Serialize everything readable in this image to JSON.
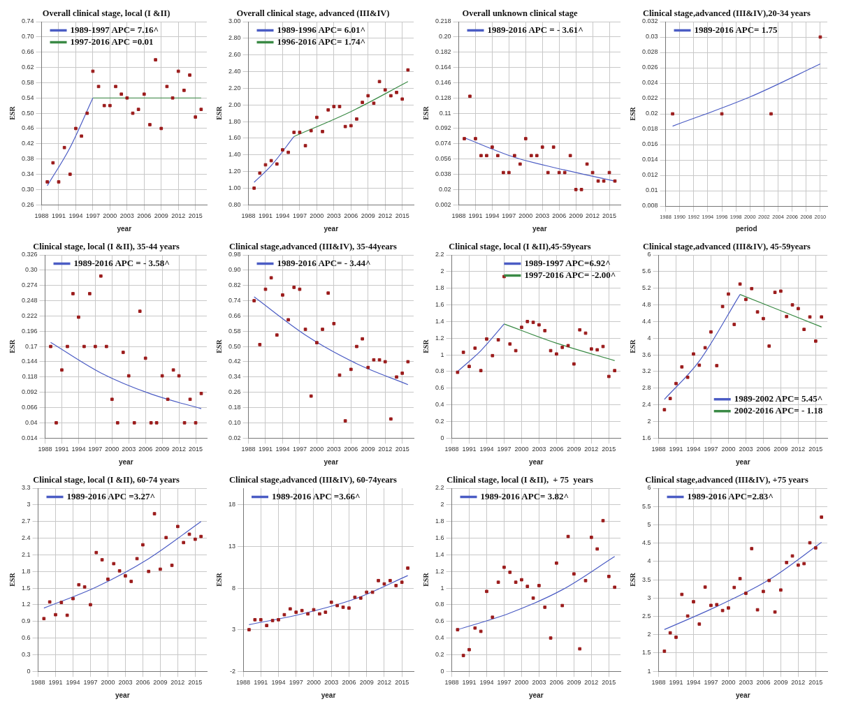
{
  "chart_data": [
    {
      "type": "scatter",
      "title": "Overall clinical stage, local (I &II)",
      "xlabel": "year",
      "ylabel": "ESR",
      "xlim": [
        1988,
        2017
      ],
      "xticks": [
        1988,
        1991,
        1994,
        1997,
        2000,
        2003,
        2006,
        2009,
        2012,
        2015
      ],
      "ylim": [
        0.26,
        0.74
      ],
      "yticks": [
        0.26,
        {
          "value": 0.3,
          "label": "0.30"
        },
        0.34,
        0.38,
        0.42,
        0.46,
        {
          "value": 0.5,
          "label": "0.50"
        },
        0.54,
        0.58,
        0.62,
        0.66,
        {
          "value": 0.7,
          "label": "0.70"
        },
        0.74
      ],
      "grid": true,
      "legend": "top left",
      "x": [
        1989,
        1990,
        1991,
        1992,
        1993,
        1994,
        1995,
        1996,
        1997,
        1998,
        1999,
        2000,
        2001,
        2002,
        2003,
        2004,
        2005,
        2006,
        2007,
        2008,
        2009,
        2010,
        2011,
        2012,
        2013,
        2014,
        2015,
        2016
      ],
      "series": [
        {
          "type": "scatter",
          "color": "#9b1c1c",
          "marker": "square",
          "values": [
            0.32,
            0.37,
            0.32,
            0.41,
            0.34,
            0.46,
            0.44,
            0.5,
            0.61,
            0.57,
            0.52,
            0.52,
            0.57,
            0.55,
            0.54,
            0.5,
            0.51,
            0.55,
            0.47,
            0.64,
            0.46,
            0.57,
            0.54,
            0.61,
            0.56,
            0.6,
            0.49,
            0.51
          ]
        },
        {
          "type": "line",
          "name": "1989-1997 APC= 7.16^",
          "color": "#4b5cc4",
          "x": [
            1989,
            1993,
            1997
          ],
          "values": [
            0.31,
            0.41,
            0.54
          ]
        },
        {
          "type": "line",
          "name": "1997-2016 APC =0.01",
          "color": "#3a8a45",
          "x": [
            1997,
            2016
          ],
          "values": [
            0.54,
            0.54
          ]
        }
      ]
    },
    {
      "type": "scatter",
      "title": "Overall clinical stage, advanced (III&IV)",
      "xlabel": "year",
      "ylabel": "ESR",
      "xlim": [
        1988,
        2017
      ],
      "xticks": [
        1988,
        1991,
        1994,
        1997,
        2000,
        2003,
        2006,
        2009,
        2012,
        2015
      ],
      "ylim": [
        0.8,
        3
      ],
      "yticks": [
        {
          "value": 0.8,
          "label": "0.80"
        },
        {
          "value": 1,
          "label": "1.00"
        },
        {
          "value": 1.2,
          "label": "1.20"
        },
        {
          "value": 1.4,
          "label": "1.40"
        },
        {
          "value": 1.6,
          "label": "1.60"
        },
        {
          "value": 1.8,
          "label": "1.80"
        },
        {
          "value": 2,
          "label": "2.00"
        },
        {
          "value": 2.2,
          "label": "2.20"
        },
        {
          "value": 2.4,
          "label": "2.40"
        },
        {
          "value": 2.6,
          "label": "2.60"
        },
        {
          "value": 2.8,
          "label": "2.80"
        },
        {
          "value": 3,
          "label": "3.00"
        }
      ],
      "grid": true,
      "legend": "top left",
      "x": [
        1989,
        1990,
        1991,
        1992,
        1993,
        1994,
        1995,
        1996,
        1997,
        1998,
        1999,
        2000,
        2001,
        2002,
        2003,
        2004,
        2005,
        2006,
        2007,
        2008,
        2009,
        2010,
        2011,
        2012,
        2013,
        2014,
        2015,
        2016
      ],
      "series": [
        {
          "type": "scatter",
          "color": "#9b1c1c",
          "marker": "square",
          "values": [
            1.0,
            1.18,
            1.28,
            1.33,
            1.29,
            1.46,
            1.43,
            1.67,
            1.67,
            1.51,
            1.69,
            1.85,
            1.68,
            1.94,
            1.98,
            1.98,
            1.74,
            1.75,
            1.83,
            2.03,
            2.11,
            2.02,
            2.28,
            2.18,
            2.11,
            2.15,
            2.07,
            2.42
          ]
        },
        {
          "type": "line",
          "name": "1989-1996 APC= 6.01^",
          "color": "#4b5cc4",
          "x": [
            1989,
            1992,
            1996
          ],
          "values": [
            1.07,
            1.27,
            1.62
          ]
        },
        {
          "type": "line",
          "name": "1996-2016 APC= 1.74^",
          "color": "#3a8a45",
          "x": [
            1996,
            2006,
            2016
          ],
          "values": [
            1.62,
            1.92,
            2.28
          ]
        }
      ]
    },
    {
      "type": "scatter",
      "title": "Overall unknown clinical stage",
      "xlabel": "year",
      "ylabel": "ESR",
      "xlim": [
        1988,
        2017
      ],
      "xticks": [
        1988,
        1991,
        1994,
        1997,
        2000,
        2003,
        2006,
        2009,
        2012,
        2015
      ],
      "ylim": [
        0.002,
        0.218
      ],
      "yticks": [
        0.002,
        0.02,
        0.038,
        0.056,
        0.074,
        0.092,
        0.11,
        0.128,
        0.146,
        0.164,
        0.182,
        {
          "value": 0.2,
          "label": "0.20"
        },
        0.218
      ],
      "grid": true,
      "legend": "top left",
      "x": [
        1989,
        1990,
        1991,
        1992,
        1993,
        1994,
        1995,
        1996,
        1997,
        1998,
        1999,
        2000,
        2001,
        2002,
        2003,
        2004,
        2005,
        2006,
        2007,
        2008,
        2009,
        2010,
        2011,
        2012,
        2013,
        2014,
        2015,
        2016
      ],
      "series": [
        {
          "type": "scatter",
          "color": "#9b1c1c",
          "marker": "square",
          "values": [
            0.08,
            0.13,
            0.08,
            0.06,
            0.06,
            0.07,
            0.06,
            0.04,
            0.04,
            0.06,
            0.05,
            0.08,
            0.06,
            0.06,
            0.07,
            0.04,
            0.07,
            0.04,
            0.04,
            0.06,
            0.02,
            0.02,
            0.05,
            0.04,
            0.03,
            0.03,
            0.04,
            0.03
          ]
        },
        {
          "type": "line",
          "name": "1989-2016 APC = - 3.61^",
          "color": "#4b5cc4",
          "x": [
            1989,
            1998,
            2007,
            2016
          ],
          "values": [
            0.081,
            0.058,
            0.043,
            0.03
          ]
        }
      ]
    },
    {
      "type": "scatter",
      "title": "Clinical stage,advanced (III&IV),20-34 years",
      "xlabel": "period",
      "ylabel": "ESR",
      "xlim": [
        1988,
        2011
      ],
      "xticks": [
        1988,
        1990,
        1992,
        1994,
        1996,
        1998,
        2000,
        2002,
        2004,
        2006,
        2008,
        2010
      ],
      "ylim": [
        0.008,
        0.032
      ],
      "yticks": [
        0.008,
        0.01,
        0.012,
        0.014,
        0.016,
        0.018,
        0.02,
        0.022,
        0.024,
        0.026,
        0.028,
        0.03,
        0.032
      ],
      "grid": true,
      "legend": "top left",
      "x": [
        1989,
        1996,
        2003,
        2010
      ],
      "series": [
        {
          "type": "scatter",
          "color": "#9b1c1c",
          "marker": "square",
          "values": [
            0.02,
            0.02,
            0.02,
            0.03
          ]
        },
        {
          "type": "line",
          "name": "1989-2016 APC= 1.75",
          "color": "#4b5cc4",
          "x": [
            1989,
            2000,
            2010
          ],
          "values": [
            0.0184,
            0.0222,
            0.0265
          ]
        }
      ]
    },
    {
      "type": "scatter",
      "title": "Clinical stage, local (I &II), 35-44 years",
      "xlabel": "year",
      "ylabel": "ESR",
      "xlim": [
        1988,
        2017
      ],
      "xticks": [
        1988,
        1991,
        1994,
        1997,
        2000,
        2003,
        2006,
        2009,
        2012,
        2015
      ],
      "ylim": [
        0.014,
        0.326
      ],
      "yticks": [
        0.014,
        0.04,
        0.066,
        0.092,
        0.118,
        0.144,
        0.17,
        0.196,
        0.222,
        0.248,
        0.274,
        {
          "value": 0.3,
          "label": "0.30"
        },
        0.326
      ],
      "grid": true,
      "legend": "top left",
      "x": [
        1989,
        1990,
        1991,
        1992,
        1993,
        1994,
        1995,
        1996,
        1997,
        1998,
        1999,
        2000,
        2001,
        2002,
        2003,
        2004,
        2005,
        2006,
        2007,
        2008,
        2009,
        2010,
        2011,
        2012,
        2013,
        2014,
        2015,
        2016
      ],
      "series": [
        {
          "type": "scatter",
          "color": "#9b1c1c",
          "marker": "square",
          "values": [
            0.17,
            0.04,
            0.13,
            0.17,
            0.26,
            0.22,
            0.17,
            0.26,
            0.17,
            0.29,
            0.17,
            0.08,
            0.04,
            0.16,
            0.12,
            0.04,
            0.23,
            0.15,
            0.04,
            0.04,
            0.12,
            0.08,
            0.13,
            0.12,
            0.04,
            0.08,
            0.04,
            0.09
          ]
        },
        {
          "type": "line",
          "name": "1989-2016 APC = - 3.58^",
          "color": "#4b5cc4",
          "x": [
            1989,
            1998,
            2007,
            2016
          ],
          "values": [
            0.177,
            0.125,
            0.089,
            0.064
          ]
        }
      ]
    },
    {
      "type": "scatter",
      "title": "Clinical stage,advanced (III&IV), 35-44years",
      "xlabel": "year",
      "ylabel": "ESR",
      "xlim": [
        1988,
        2017
      ],
      "xticks": [
        1988,
        1991,
        1994,
        1997,
        2000,
        2003,
        2006,
        2009,
        2012,
        2015
      ],
      "ylim": [
        0.02,
        0.98
      ],
      "yticks": [
        0.02,
        {
          "value": 0.1,
          "label": "0.10"
        },
        0.18,
        0.26,
        0.34,
        0.42,
        {
          "value": 0.5,
          "label": "0.50"
        },
        0.58,
        0.66,
        0.74,
        0.82,
        {
          "value": 0.9,
          "label": "0.90"
        },
        0.98
      ],
      "grid": true,
      "legend": "top left",
      "x": [
        1989,
        1990,
        1991,
        1992,
        1993,
        1994,
        1995,
        1996,
        1997,
        1998,
        1999,
        2000,
        2001,
        2002,
        2003,
        2004,
        2005,
        2006,
        2007,
        2008,
        2009,
        2010,
        2011,
        2012,
        2013,
        2014,
        2015,
        2016
      ],
      "series": [
        {
          "type": "scatter",
          "color": "#9b1c1c",
          "marker": "square",
          "values": [
            0.74,
            0.51,
            0.8,
            0.86,
            0.56,
            0.77,
            0.64,
            0.81,
            0.8,
            0.59,
            0.24,
            0.52,
            0.59,
            0.78,
            0.62,
            0.35,
            0.11,
            0.38,
            0.5,
            0.54,
            0.39,
            0.43,
            0.43,
            0.42,
            0.12,
            0.34,
            0.36,
            0.42
          ]
        },
        {
          "type": "line",
          "name": "1989-2016 APC= - 3.44^",
          "color": "#4b5cc4",
          "x": [
            1989,
            1998,
            2007,
            2016
          ],
          "values": [
            0.76,
            0.56,
            0.41,
            0.3
          ]
        }
      ]
    },
    {
      "type": "scatter",
      "title": "Clinical stage, local (I &II),45-59years",
      "xlabel": "year",
      "ylabel": "ESR",
      "xlim": [
        1988,
        2017
      ],
      "xticks": [
        1988,
        1991,
        1994,
        1997,
        2000,
        2003,
        2006,
        2009,
        2012,
        2015
      ],
      "ylim": [
        0,
        2.2
      ],
      "yticks": [
        0,
        0.2,
        0.4,
        0.6,
        0.8,
        1,
        1.2,
        1.4,
        1.6,
        1.8,
        2,
        2.2
      ],
      "grid": true,
      "legend": "top right",
      "x": [
        1989,
        1990,
        1991,
        1992,
        1993,
        1994,
        1995,
        1996,
        1997,
        1998,
        1999,
        2000,
        2001,
        2002,
        2003,
        2004,
        2005,
        2006,
        2007,
        2008,
        2009,
        2010,
        2011,
        2012,
        2013,
        2014,
        2015,
        2016
      ],
      "series": [
        {
          "type": "scatter",
          "color": "#9b1c1c",
          "marker": "square",
          "values": [
            0.79,
            1.03,
            0.86,
            1.08,
            0.81,
            1.19,
            0.99,
            1.18,
            1.94,
            1.13,
            1.05,
            1.33,
            1.4,
            1.39,
            1.36,
            1.29,
            1.05,
            1.01,
            1.09,
            1.11,
            0.89,
            1.3,
            1.26,
            1.07,
            1.06,
            1.1,
            0.74,
            0.81
          ]
        },
        {
          "type": "line",
          "name": "1989-1997 APC=6.92^",
          "color": "#4b5cc4",
          "x": [
            1989,
            1993,
            1997
          ],
          "values": [
            0.8,
            1.05,
            1.37
          ]
        },
        {
          "type": "line",
          "name": "1997-2016 APC= -2.00^",
          "color": "#3a8a45",
          "x": [
            1997,
            2006,
            2016
          ],
          "values": [
            1.37,
            1.14,
            0.93
          ]
        }
      ]
    },
    {
      "type": "scatter",
      "title": "Clinical stage,advanced (III&IV), 45-59years",
      "xlabel": "year",
      "ylabel": "ESR",
      "xlim": [
        1988,
        2017
      ],
      "xticks": [
        1988,
        1991,
        1994,
        1997,
        2000,
        2003,
        2006,
        2009,
        2012,
        2015
      ],
      "ylim": [
        1.6,
        6
      ],
      "yticks": [
        1.6,
        2,
        2.4,
        2.8,
        3.2,
        3.6,
        4,
        4.4,
        4.8,
        5.2,
        5.6,
        6
      ],
      "grid": true,
      "legend": "bottom right",
      "x": [
        1989,
        1990,
        1991,
        1992,
        1993,
        1994,
        1995,
        1996,
        1997,
        1998,
        1999,
        2000,
        2001,
        2002,
        2003,
        2004,
        2005,
        2006,
        2007,
        2008,
        2009,
        2010,
        2011,
        2012,
        2013,
        2014,
        2015,
        2016
      ],
      "series": [
        {
          "type": "scatter",
          "color": "#9b1c1c",
          "marker": "square",
          "values": [
            2.28,
            2.55,
            2.91,
            3.31,
            3.06,
            3.62,
            3.35,
            3.77,
            4.15,
            3.34,
            4.76,
            5.06,
            4.33,
            5.3,
            4.93,
            5.19,
            4.63,
            4.47,
            3.81,
            5.1,
            5.13,
            4.52,
            4.8,
            4.71,
            4.21,
            4.51,
            3.93,
            4.51
          ]
        },
        {
          "type": "line",
          "name": "1989-2002 APC= 5.45^",
          "color": "#4b5cc4",
          "x": [
            1989,
            1995,
            2002
          ],
          "values": [
            2.53,
            3.45,
            5.05
          ]
        },
        {
          "type": "line",
          "name": "2002-2016 APC= - 1.18",
          "color": "#3a8a45",
          "x": [
            2002,
            2016
          ],
          "values": [
            5.05,
            4.27
          ]
        }
      ]
    },
    {
      "type": "scatter",
      "title": "Clinical stage, local (I &II), 60-74 years",
      "xlabel": "year",
      "ylabel": "ESR",
      "xlim": [
        1988,
        2017
      ],
      "xticks": [
        1988,
        1991,
        1994,
        1997,
        2000,
        2003,
        2006,
        2009,
        2012,
        2015
      ],
      "ylim": [
        0,
        3.3
      ],
      "yticks": [
        0,
        0.3,
        0.6,
        0.9,
        1.2,
        1.5,
        1.8,
        2.1,
        2.4,
        2.7,
        3,
        3.3
      ],
      "grid": true,
      "legend": "top left",
      "x": [
        1989,
        1990,
        1991,
        1992,
        1993,
        1994,
        1995,
        1996,
        1997,
        1998,
        1999,
        2000,
        2001,
        2002,
        2003,
        2004,
        2005,
        2006,
        2007,
        2008,
        2009,
        2010,
        2011,
        2012,
        2013,
        2014,
        2015,
        2016
      ],
      "series": [
        {
          "type": "scatter",
          "color": "#9b1c1c",
          "marker": "square",
          "values": [
            0.95,
            1.25,
            1.02,
            1.24,
            1.01,
            1.31,
            1.56,
            1.52,
            1.2,
            2.14,
            2.01,
            1.66,
            1.94,
            1.81,
            1.72,
            1.62,
            2.03,
            2.28,
            1.8,
            2.84,
            1.84,
            2.41,
            1.91,
            2.61,
            2.32,
            2.47,
            2.38,
            2.43
          ]
        },
        {
          "type": "line",
          "name": "1989-2016 APC =3.27^",
          "color": "#4b5cc4",
          "x": [
            1989,
            1998,
            2007,
            2016
          ],
          "values": [
            1.14,
            1.52,
            2.03,
            2.7
          ]
        }
      ]
    },
    {
      "type": "scatter",
      "title": "Clinical stage,advanced (III&IV), 60-74years",
      "xlabel": "year",
      "ylabel": "ESR",
      "xlim": [
        1988,
        2017
      ],
      "xticks": [
        1988,
        1991,
        1994,
        1997,
        2000,
        2003,
        2006,
        2009,
        2012,
        2015
      ],
      "ylim": [
        -2,
        20
      ],
      "yticks": [
        -2,
        3,
        8,
        13,
        18
      ],
      "grid": true,
      "legend": "top left",
      "x": [
        1989,
        1990,
        1991,
        1992,
        1993,
        1994,
        1995,
        1996,
        1997,
        1998,
        1999,
        2000,
        2001,
        2002,
        2003,
        2004,
        2005,
        2006,
        2007,
        2008,
        2009,
        2010,
        2011,
        2012,
        2013,
        2014,
        2015,
        2016
      ],
      "series": [
        {
          "type": "scatter",
          "color": "#9b1c1c",
          "marker": "square",
          "values": [
            3.0,
            4.2,
            4.2,
            3.5,
            4.1,
            4.2,
            4.8,
            5.5,
            5.1,
            5.3,
            4.9,
            5.4,
            4.9,
            5.1,
            6.3,
            5.9,
            5.7,
            5.6,
            6.9,
            6.8,
            7.5,
            7.5,
            8.9,
            8.5,
            8.9,
            8.3,
            8.7,
            10.4
          ]
        },
        {
          "type": "line",
          "name": "1989-2016 APC =3.66^",
          "color": "#4b5cc4",
          "x": [
            1989,
            1998,
            2007,
            2016
          ],
          "values": [
            3.6,
            4.9,
            6.7,
            9.5
          ]
        }
      ]
    },
    {
      "type": "scatter",
      "title": "Clinical stage, local (I &II),  + 75  years",
      "xlabel": "year",
      "ylabel": "ESR",
      "xlim": [
        1988,
        2017
      ],
      "xticks": [
        1988,
        1991,
        1994,
        1997,
        2000,
        2003,
        2006,
        2009,
        2012,
        2015
      ],
      "ylim": [
        0,
        2.2
      ],
      "yticks": [
        0,
        0.2,
        0.4,
        0.6,
        0.8,
        1,
        1.2,
        1.4,
        1.6,
        1.8,
        2,
        2.2
      ],
      "grid": true,
      "legend": "top left",
      "x": [
        1989,
        1990,
        1991,
        1992,
        1993,
        1994,
        1995,
        1996,
        1997,
        1998,
        1999,
        2000,
        2001,
        2002,
        2003,
        2004,
        2005,
        2006,
        2007,
        2008,
        2009,
        2010,
        2011,
        2012,
        2013,
        2014,
        2015,
        2016
      ],
      "series": [
        {
          "type": "scatter",
          "color": "#9b1c1c",
          "marker": "square",
          "values": [
            0.5,
            0.19,
            0.26,
            0.52,
            0.48,
            0.96,
            0.65,
            1.07,
            1.25,
            1.19,
            1.07,
            1.1,
            1.02,
            0.88,
            1.03,
            0.77,
            0.4,
            1.3,
            0.79,
            1.62,
            1.17,
            0.27,
            1.09,
            1.61,
            1.47,
            1.81,
            1.14,
            1.01
          ]
        },
        {
          "type": "line",
          "name": "1989-2016 APC= 3.82^",
          "color": "#4b5cc4",
          "x": [
            1989,
            1998,
            2007,
            2016
          ],
          "values": [
            0.5,
            0.7,
            0.98,
            1.38
          ]
        }
      ]
    },
    {
      "type": "scatter",
      "title": "Clinical stage,advanced (III&IV), +75 years",
      "xlabel": "year",
      "ylabel": "ESR",
      "xlim": [
        1988,
        2017
      ],
      "xticks": [
        1988,
        1991,
        1994,
        1997,
        2000,
        2003,
        2006,
        2009,
        2012,
        2015
      ],
      "ylim": [
        1,
        6
      ],
      "yticks": [
        1,
        1.5,
        2,
        2.5,
        3,
        3.5,
        4,
        4.5,
        5,
        5.5,
        6
      ],
      "grid": true,
      "legend": "top left",
      "x": [
        1989,
        1990,
        1991,
        1992,
        1993,
        1994,
        1995,
        1996,
        1997,
        1998,
        1999,
        2000,
        2001,
        2002,
        2003,
        2004,
        2005,
        2006,
        2007,
        2008,
        2009,
        2010,
        2011,
        2012,
        2013,
        2014,
        2015,
        2016
      ],
      "series": [
        {
          "type": "scatter",
          "color": "#9b1c1c",
          "marker": "square",
          "values": [
            1.55,
            2.05,
            1.93,
            3.1,
            2.51,
            2.9,
            2.29,
            3.3,
            2.8,
            2.82,
            2.66,
            2.73,
            3.29,
            3.53,
            3.13,
            4.35,
            2.68,
            3.18,
            3.48,
            2.62,
            3.22,
            3.97,
            4.15,
            3.9,
            3.94,
            4.51,
            4.37,
            5.21
          ]
        },
        {
          "type": "line",
          "name": "1989-2016 APC=2.83^",
          "color": "#4b5cc4",
          "x": [
            1989,
            1998,
            2007,
            2016
          ],
          "values": [
            2.14,
            2.77,
            3.5,
            4.52
          ]
        }
      ]
    }
  ]
}
